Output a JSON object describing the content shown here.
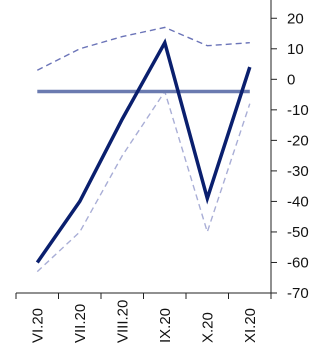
{
  "chart_data": {
    "type": "line",
    "categories": [
      "VI.20",
      "VII.20",
      "VIII.20",
      "IX.20",
      "X.20",
      "XI.20"
    ],
    "y_axis_position": "right",
    "ylim": [
      -70,
      25
    ],
    "y_ticks": [
      20,
      10,
      0,
      -10,
      -20,
      -30,
      -40,
      -50,
      -60,
      -70
    ],
    "grid": false,
    "legend": "none",
    "title": "",
    "xlabel": "",
    "ylabel": "",
    "series": [
      {
        "values": [
          -60,
          -40,
          -13,
          12,
          -39,
          4
        ],
        "color": "#0a1f6e",
        "style": "solid",
        "width": "thick"
      },
      {
        "values": [
          -63,
          -50,
          -25,
          -4,
          -50,
          -8
        ],
        "color": "#a9aed6",
        "style": "dashed",
        "width": "thin"
      },
      {
        "values": [
          3,
          10,
          14,
          17,
          11,
          12
        ],
        "color": "#6b74b8",
        "style": "dashed",
        "width": "thin"
      },
      {
        "values": [
          -4,
          -4,
          -4,
          -4,
          -4,
          -4
        ],
        "color": "#6b7bb0",
        "style": "solid",
        "width": "thick"
      }
    ]
  }
}
